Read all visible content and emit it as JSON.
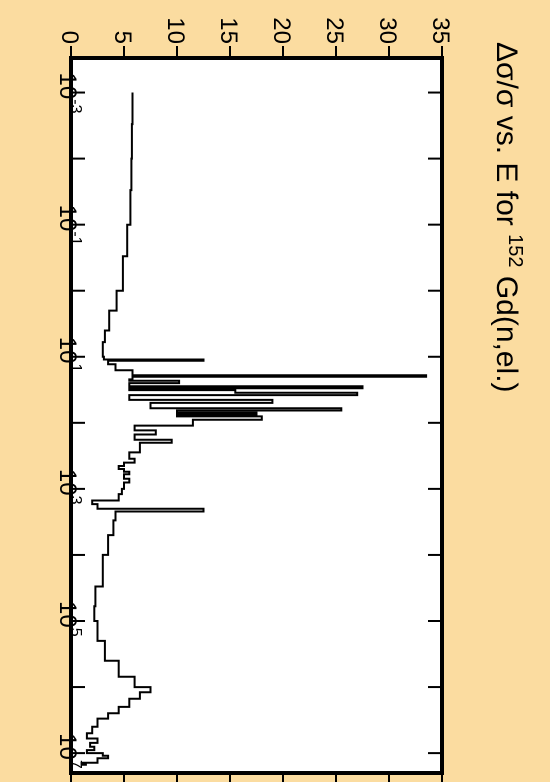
{
  "chart_data": {
    "type": "line",
    "title_parts": {
      "prefix": "Δσ/σ vs. E for  ",
      "mass_number": "152",
      "suffix": "Gd(n,el.)"
    },
    "xlabel": "",
    "ylabel": "",
    "x_scale": "log",
    "xlim": [
      0.0003,
      20000000
    ],
    "ylim": [
      0,
      35
    ],
    "x_tick_labels": [
      {
        "base": "10",
        "exp": "-3",
        "value": 0.001
      },
      {
        "base": "10",
        "exp": "-1",
        "value": 0.1
      },
      {
        "base": "10",
        "exp": "1",
        "value": 10
      },
      {
        "base": "10",
        "exp": "3",
        "value": 1000
      },
      {
        "base": "10",
        "exp": "5",
        "value": 100000
      },
      {
        "base": "10",
        "exp": "7",
        "value": 10000000
      }
    ],
    "y_tick_labels": [
      "0",
      "5",
      "10",
      "15",
      "20",
      "25",
      "30",
      "35"
    ],
    "y_ticks": [
      0,
      5,
      10,
      15,
      20,
      25,
      30,
      35
    ],
    "grid": false,
    "legend": "none",
    "orientation": "rotated-90-clockwise",
    "series": [
      {
        "x": [
          0.001,
          0.003,
          0.01,
          0.03,
          0.1,
          0.3,
          1,
          2,
          4,
          6,
          8,
          10,
          11,
          11.5,
          12,
          13,
          15,
          16,
          17.5,
          19,
          20,
          21,
          22,
          23,
          25,
          27,
          28,
          30,
          32,
          35,
          38,
          40,
          45,
          50,
          55,
          60,
          65,
          70,
          75,
          80,
          90,
          100,
          110,
          130,
          150,
          180,
          200,
          250,
          280,
          300,
          350,
          400,
          450,
          500,
          550,
          600,
          700,
          800,
          1000,
          1200,
          1500,
          1700,
          2000,
          2200,
          2500,
          3000,
          5000,
          10000,
          30000,
          60000,
          100000,
          200000,
          400000,
          700000,
          1000000,
          1200000,
          1500000,
          2000000,
          2500000,
          3000000,
          4000000,
          5000000,
          6000000,
          7000000,
          8000000,
          9000000,
          10000000,
          11000000,
          12000000,
          14000000,
          15000000
        ],
        "y": [
          5.8,
          5.75,
          5.7,
          5.6,
          5.3,
          4.9,
          4.3,
          3.6,
          3.2,
          3.0,
          3.0,
          3.1,
          12.5,
          3.5,
          3.5,
          4.2,
          4.2,
          5.8,
          5.8,
          33.5,
          5.8,
          5.8,
          5.5,
          10.2,
          5.5,
          5.5,
          27.5,
          5.5,
          15.5,
          27.0,
          5.5,
          5.5,
          19.0,
          7.5,
          7.5,
          25.5,
          10.0,
          17.5,
          10.0,
          18.0,
          11.5,
          11.5,
          6.0,
          8.0,
          6.0,
          9.5,
          6.5,
          6.5,
          5.5,
          5.5,
          6.0,
          5.0,
          4.5,
          5.0,
          5.5,
          5.0,
          5.5,
          5.0,
          4.8,
          4.5,
          2.0,
          2.5,
          12.5,
          4.2,
          4.2,
          4.0,
          3.5,
          3.0,
          2.3,
          2.2,
          2.5,
          3.2,
          4.5,
          6.0,
          7.5,
          6.5,
          5.5,
          4.5,
          3.5,
          2.5,
          2.0,
          1.5,
          2.5,
          1.8,
          2.2,
          1.5,
          3.0,
          3.5,
          2.5,
          1.0,
          1.5
        ]
      }
    ]
  }
}
